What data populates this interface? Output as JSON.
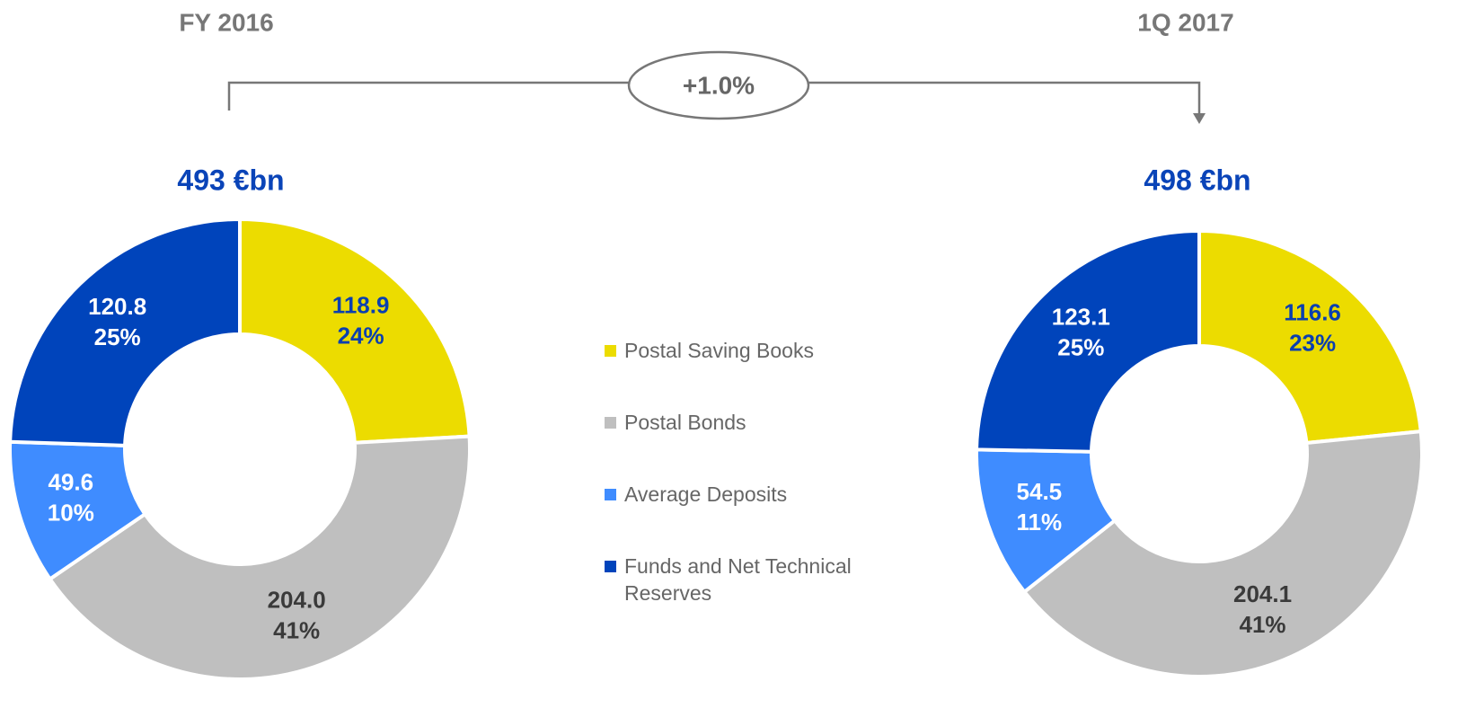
{
  "annotation": "+1.0%",
  "chart_data": [
    {
      "type": "pie",
      "donut": true,
      "title": "FY 2016",
      "subtitle": "493 €bn",
      "categories": [
        "Postal Saving Books",
        "Postal Bonds",
        "Average Deposits",
        "Funds and Net Technical Reserves"
      ],
      "values": [
        118.9,
        204.0,
        49.6,
        120.8
      ],
      "value_labels": [
        "118.9",
        "204.0",
        "49.6",
        "120.8"
      ],
      "shares": [
        24,
        41,
        10,
        25
      ],
      "share_labels": [
        "24%",
        "41%",
        "10%",
        "25%"
      ],
      "colors": [
        "#ecdc00",
        "#bfbfbf",
        "#3f8cff",
        "#0044bb"
      ]
    },
    {
      "type": "pie",
      "donut": true,
      "title": "1Q 2017",
      "subtitle": "498 €bn",
      "categories": [
        "Postal Saving Books",
        "Postal Bonds",
        "Average Deposits",
        "Funds and Net Technical Reserves"
      ],
      "values": [
        116.6,
        204.1,
        54.5,
        123.1
      ],
      "value_labels": [
        "116.6",
        "204.1",
        "54.5",
        "123.1"
      ],
      "shares": [
        23,
        41,
        11,
        25
      ],
      "share_labels": [
        "23%",
        "41%",
        "11%",
        "25%"
      ],
      "colors": [
        "#ecdc00",
        "#bfbfbf",
        "#3f8cff",
        "#0044bb"
      ]
    }
  ]
}
